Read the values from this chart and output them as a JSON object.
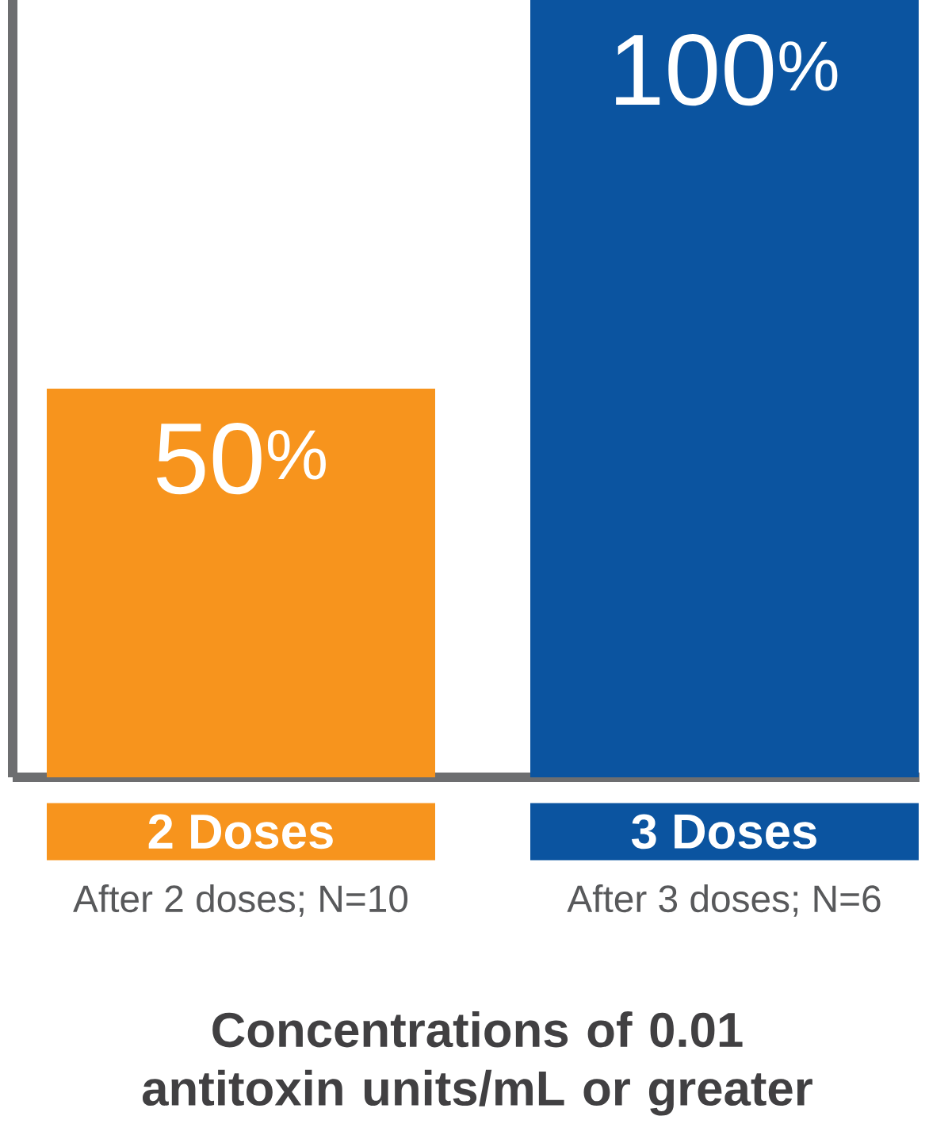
{
  "chart_data": {
    "type": "bar",
    "categories": [
      "2 Doses",
      "3 Doses"
    ],
    "values": [
      50,
      100
    ],
    "colors": [
      "#f7941d",
      "#0b54a0"
    ],
    "value_labels": [
      "50$^{%}$",
      "100$^{%}$"
    ],
    "annotations": [
      "After 2 doses; N=10",
      "After 3 doses; N=6"
    ],
    "xlabel": "Concentrations of 0.01 antitoxin units/mL or greater",
    "ylim": [
      0,
      100
    ]
  }
}
